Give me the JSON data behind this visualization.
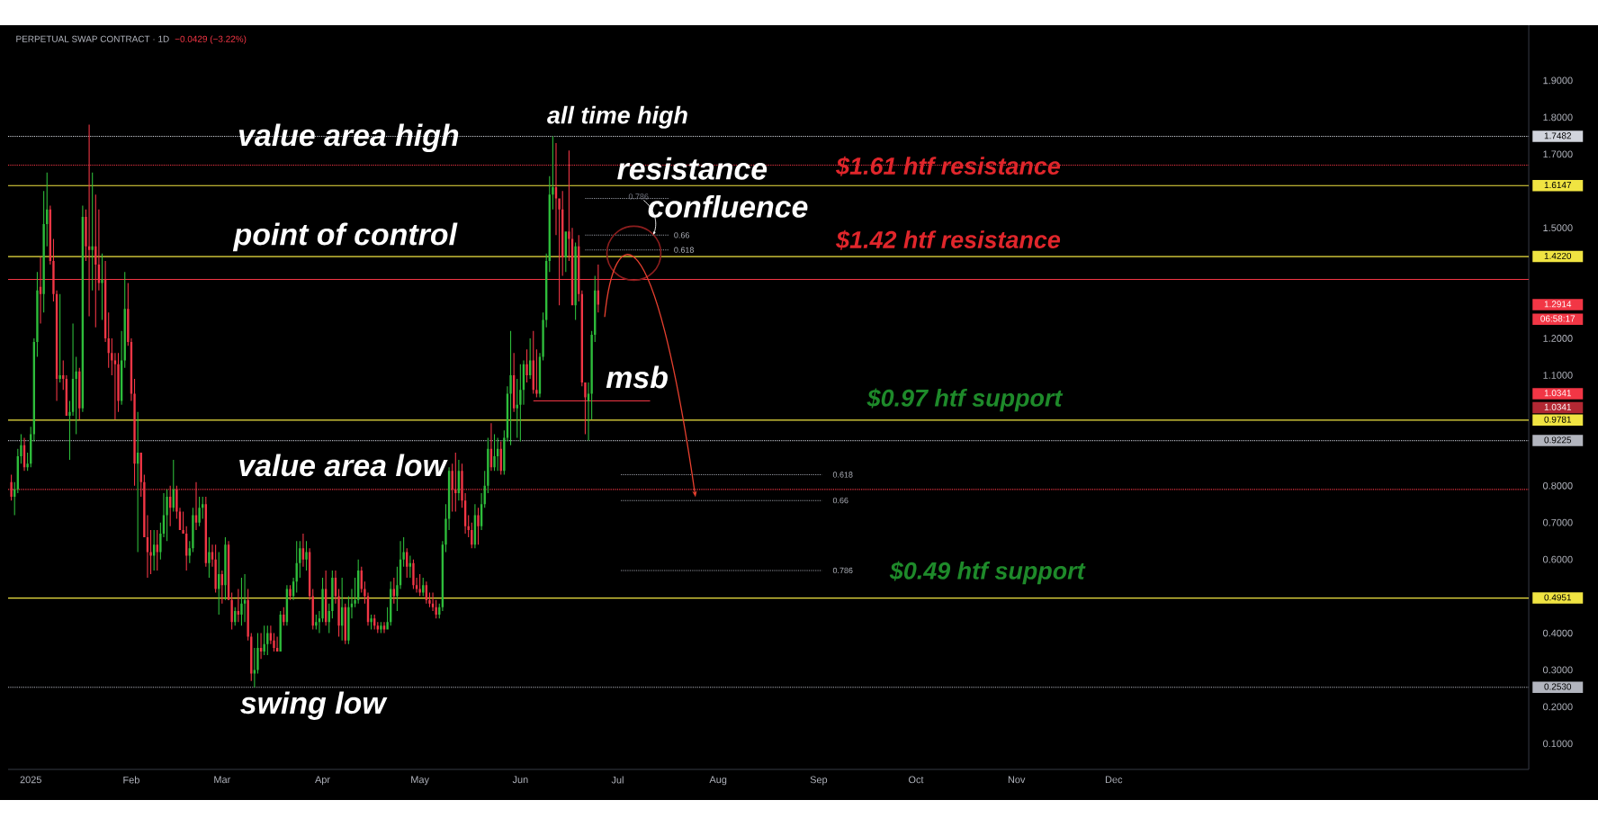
{
  "chart_data": {
    "type": "candlestick",
    "title": "PERPETUAL SWAP CONTRACT · 1D",
    "subtitle": "−0.0429 (−3.22%)",
    "x": [
      "2024-12-26",
      "2024-12-27",
      "2024-12-28",
      "2024-12-29",
      "2024-12-30",
      "2024-12-31",
      "2025-01-01",
      "2025-01-02",
      "2025-01-03",
      "2025-01-04",
      "2025-01-05",
      "2025-01-06",
      "2025-01-07",
      "2025-01-08",
      "2025-01-09",
      "2025-01-10",
      "2025-01-11",
      "2025-01-12",
      "2025-01-13",
      "2025-01-14",
      "2025-01-15",
      "2025-01-16",
      "2025-01-17",
      "2025-01-18",
      "2025-01-19",
      "2025-01-20",
      "2025-01-21",
      "2025-01-22",
      "2025-01-23",
      "2025-01-24",
      "2025-01-25",
      "2025-01-26",
      "2025-01-27",
      "2025-01-28",
      "2025-01-29",
      "2025-01-30",
      "2025-01-31",
      "2025-02-01",
      "2025-02-02",
      "2025-02-03",
      "2025-02-04",
      "2025-02-05",
      "2025-02-06",
      "2025-02-07",
      "2025-02-08",
      "2025-02-09",
      "2025-02-10",
      "2025-02-11",
      "2025-02-12",
      "2025-02-13",
      "2025-02-14",
      "2025-02-15",
      "2025-02-16",
      "2025-02-17",
      "2025-02-18",
      "2025-02-19",
      "2025-02-20",
      "2025-02-21",
      "2025-02-22",
      "2025-02-23",
      "2025-02-24",
      "2025-02-25",
      "2025-02-26",
      "2025-02-27",
      "2025-02-28",
      "2025-03-01",
      "2025-03-02",
      "2025-03-03",
      "2025-03-04",
      "2025-03-05",
      "2025-03-06",
      "2025-03-07",
      "2025-03-08",
      "2025-03-09",
      "2025-03-10",
      "2025-03-11",
      "2025-03-12",
      "2025-03-13",
      "2025-03-14",
      "2025-03-15",
      "2025-03-16",
      "2025-03-17",
      "2025-03-18",
      "2025-03-19",
      "2025-03-20",
      "2025-03-21",
      "2025-03-22",
      "2025-03-23",
      "2025-03-24",
      "2025-03-25",
      "2025-03-26",
      "2025-03-27",
      "2025-03-28",
      "2025-03-29",
      "2025-03-30",
      "2025-03-31",
      "2025-04-01",
      "2025-04-02",
      "2025-04-03",
      "2025-04-04",
      "2025-04-05",
      "2025-04-06",
      "2025-04-07",
      "2025-04-08",
      "2025-04-09",
      "2025-04-10",
      "2025-04-11",
      "2025-04-12",
      "2025-04-13",
      "2025-04-14",
      "2025-04-15",
      "2025-04-16",
      "2025-04-17",
      "2025-04-18",
      "2025-04-19",
      "2025-04-20",
      "2025-04-21",
      "2025-04-22",
      "2025-04-23",
      "2025-04-24",
      "2025-04-25",
      "2025-04-26",
      "2025-04-27",
      "2025-04-28",
      "2025-04-29",
      "2025-04-30",
      "2025-05-01",
      "2025-05-02",
      "2025-05-03",
      "2025-05-04",
      "2025-05-05",
      "2025-05-06",
      "2025-05-07",
      "2025-05-08",
      "2025-05-09",
      "2025-05-10",
      "2025-05-11",
      "2025-05-12",
      "2025-05-13",
      "2025-05-14",
      "2025-05-15",
      "2025-05-16",
      "2025-05-17",
      "2025-05-18",
      "2025-05-19",
      "2025-05-20",
      "2025-05-21",
      "2025-05-22",
      "2025-05-23",
      "2025-05-24",
      "2025-05-25",
      "2025-05-26",
      "2025-05-27",
      "2025-05-28",
      "2025-05-29",
      "2025-05-30",
      "2025-05-31",
      "2025-06-01",
      "2025-06-02",
      "2025-06-03",
      "2025-06-04",
      "2025-06-05",
      "2025-06-06",
      "2025-06-07",
      "2025-06-08",
      "2025-06-09",
      "2025-06-10",
      "2025-06-11",
      "2025-06-12",
      "2025-06-13",
      "2025-06-14",
      "2025-06-15",
      "2025-06-16",
      "2025-06-17",
      "2025-06-18",
      "2025-06-19",
      "2025-06-20",
      "2025-06-21",
      "2025-06-22",
      "2025-06-23",
      "2025-06-24",
      "2025-06-25"
    ],
    "ohlc": [
      [
        0.81,
        0.83,
        0.76,
        0.77
      ],
      [
        0.77,
        0.81,
        0.72,
        0.79
      ],
      [
        0.79,
        0.9,
        0.78,
        0.88
      ],
      [
        0.88,
        0.94,
        0.86,
        0.91
      ],
      [
        0.91,
        0.93,
        0.84,
        0.85
      ],
      [
        0.85,
        0.89,
        0.84,
        0.86
      ],
      [
        0.86,
        0.96,
        0.85,
        0.94
      ],
      [
        0.94,
        1.2,
        0.92,
        1.19
      ],
      [
        1.19,
        1.38,
        1.15,
        1.33
      ],
      [
        1.34,
        1.42,
        1.24,
        1.32
      ],
      [
        1.32,
        1.6,
        1.27,
        1.51
      ],
      [
        1.51,
        1.65,
        1.45,
        1.55
      ],
      [
        1.55,
        1.56,
        1.4,
        1.41
      ],
      [
        1.41,
        1.47,
        1.3,
        1.32
      ],
      [
        1.32,
        1.33,
        1.03,
        1.09
      ],
      [
        1.09,
        1.32,
        1.08,
        1.1
      ],
      [
        1.1,
        1.14,
        1.06,
        1.09
      ],
      [
        1.09,
        1.1,
        0.99,
        0.99
      ],
      [
        0.99,
        1.03,
        0.87,
        1.0
      ],
      [
        1.0,
        1.24,
        0.99,
        1.09
      ],
      [
        1.09,
        1.15,
        0.94,
        1.11
      ],
      [
        1.11,
        1.12,
        0.98,
        1.01
      ],
      [
        1.01,
        1.56,
        1.0,
        1.53
      ],
      [
        1.53,
        1.55,
        1.41,
        1.45
      ],
      [
        1.45,
        1.78,
        1.26,
        1.44
      ],
      [
        1.44,
        1.65,
        1.33,
        1.45
      ],
      [
        1.45,
        1.59,
        1.23,
        1.4
      ],
      [
        1.4,
        1.55,
        1.33,
        1.35
      ],
      [
        1.35,
        1.43,
        1.25,
        1.36
      ],
      [
        1.36,
        1.41,
        1.19,
        1.2
      ],
      [
        1.2,
        1.27,
        1.12,
        1.16
      ],
      [
        1.16,
        1.2,
        1.1,
        1.14
      ],
      [
        1.14,
        1.16,
        0.98,
        1.13
      ],
      [
        1.13,
        1.16,
        1.0,
        1.03
      ],
      [
        1.03,
        1.22,
        1.02,
        1.14
      ],
      [
        1.14,
        1.38,
        1.12,
        1.28
      ],
      [
        1.28,
        1.35,
        1.18,
        1.19
      ],
      [
        1.19,
        1.2,
        1.03,
        1.05
      ],
      [
        1.05,
        1.09,
        0.8,
        0.86
      ],
      [
        0.86,
        1.0,
        0.62,
        0.89
      ],
      [
        0.89,
        0.89,
        0.77,
        0.81
      ],
      [
        0.81,
        0.83,
        0.66,
        0.66
      ],
      [
        0.66,
        0.72,
        0.55,
        0.62
      ],
      [
        0.62,
        0.68,
        0.56,
        0.61
      ],
      [
        0.61,
        0.68,
        0.57,
        0.64
      ],
      [
        0.64,
        0.68,
        0.57,
        0.62
      ],
      [
        0.62,
        0.7,
        0.6,
        0.67
      ],
      [
        0.67,
        0.78,
        0.66,
        0.72
      ],
      [
        0.72,
        0.79,
        0.65,
        0.77
      ],
      [
        0.77,
        0.8,
        0.69,
        0.74
      ],
      [
        0.74,
        0.87,
        0.73,
        0.79
      ],
      [
        0.79,
        0.8,
        0.71,
        0.73
      ],
      [
        0.73,
        0.74,
        0.68,
        0.68
      ],
      [
        0.68,
        0.73,
        0.67,
        0.67
      ],
      [
        0.67,
        0.69,
        0.57,
        0.61
      ],
      [
        0.61,
        0.65,
        0.59,
        0.63
      ],
      [
        0.63,
        0.74,
        0.62,
        0.72
      ],
      [
        0.72,
        0.81,
        0.68,
        0.7
      ],
      [
        0.7,
        0.77,
        0.69,
        0.74
      ],
      [
        0.74,
        0.77,
        0.71,
        0.75
      ],
      [
        0.75,
        0.77,
        0.58,
        0.59
      ],
      [
        0.59,
        0.66,
        0.55,
        0.62
      ],
      [
        0.62,
        0.64,
        0.58,
        0.6
      ],
      [
        0.6,
        0.64,
        0.51,
        0.52
      ],
      [
        0.52,
        0.62,
        0.45,
        0.56
      ],
      [
        0.56,
        0.57,
        0.48,
        0.53
      ],
      [
        0.53,
        0.66,
        0.49,
        0.64
      ],
      [
        0.64,
        0.65,
        0.49,
        0.49
      ],
      [
        0.49,
        0.51,
        0.41,
        0.43
      ],
      [
        0.43,
        0.47,
        0.42,
        0.46
      ],
      [
        0.46,
        0.52,
        0.43,
        0.45
      ],
      [
        0.45,
        0.55,
        0.42,
        0.48
      ],
      [
        0.48,
        0.56,
        0.43,
        0.49
      ],
      [
        0.49,
        0.52,
        0.38,
        0.39
      ],
      [
        0.39,
        0.4,
        0.27,
        0.29
      ],
      [
        0.29,
        0.36,
        0.253,
        0.3
      ],
      [
        0.3,
        0.4,
        0.29,
        0.36
      ],
      [
        0.36,
        0.4,
        0.33,
        0.35
      ],
      [
        0.35,
        0.42,
        0.34,
        0.37
      ],
      [
        0.37,
        0.42,
        0.34,
        0.4
      ],
      [
        0.4,
        0.42,
        0.37,
        0.38
      ],
      [
        0.38,
        0.4,
        0.35,
        0.36
      ],
      [
        0.36,
        0.39,
        0.35,
        0.35
      ],
      [
        0.35,
        0.46,
        0.35,
        0.45
      ],
      [
        0.45,
        0.47,
        0.42,
        0.43
      ],
      [
        0.43,
        0.53,
        0.42,
        0.52
      ],
      [
        0.52,
        0.53,
        0.49,
        0.5
      ],
      [
        0.5,
        0.55,
        0.49,
        0.54
      ],
      [
        0.54,
        0.65,
        0.51,
        0.59
      ],
      [
        0.59,
        0.65,
        0.55,
        0.63
      ],
      [
        0.63,
        0.67,
        0.58,
        0.6
      ],
      [
        0.6,
        0.65,
        0.57,
        0.62
      ],
      [
        0.62,
        0.63,
        0.49,
        0.5
      ],
      [
        0.5,
        0.52,
        0.41,
        0.42
      ],
      [
        0.42,
        0.45,
        0.41,
        0.43
      ],
      [
        0.43,
        0.46,
        0.4,
        0.44
      ],
      [
        0.44,
        0.55,
        0.43,
        0.52
      ],
      [
        0.52,
        0.57,
        0.42,
        0.43
      ],
      [
        0.43,
        0.48,
        0.4,
        0.46
      ],
      [
        0.46,
        0.57,
        0.44,
        0.55
      ],
      [
        0.55,
        0.57,
        0.48,
        0.5
      ],
      [
        0.5,
        0.52,
        0.39,
        0.42
      ],
      [
        0.42,
        0.55,
        0.38,
        0.47
      ],
      [
        0.47,
        0.48,
        0.37,
        0.38
      ],
      [
        0.38,
        0.5,
        0.37,
        0.47
      ],
      [
        0.47,
        0.52,
        0.44,
        0.48
      ],
      [
        0.48,
        0.55,
        0.47,
        0.49
      ],
      [
        0.49,
        0.6,
        0.48,
        0.57
      ],
      [
        0.57,
        0.58,
        0.51,
        0.52
      ],
      [
        0.52,
        0.54,
        0.48,
        0.5
      ],
      [
        0.5,
        0.51,
        0.42,
        0.43
      ],
      [
        0.43,
        0.45,
        0.41,
        0.44
      ],
      [
        0.44,
        0.45,
        0.41,
        0.42
      ],
      [
        0.42,
        0.43,
        0.4,
        0.41
      ],
      [
        0.41,
        0.43,
        0.4,
        0.42
      ],
      [
        0.42,
        0.43,
        0.4,
        0.41
      ],
      [
        0.41,
        0.47,
        0.41,
        0.43
      ],
      [
        0.43,
        0.54,
        0.42,
        0.52
      ],
      [
        0.52,
        0.55,
        0.48,
        0.5
      ],
      [
        0.5,
        0.58,
        0.46,
        0.53
      ],
      [
        0.53,
        0.65,
        0.52,
        0.6
      ],
      [
        0.6,
        0.66,
        0.58,
        0.62
      ],
      [
        0.62,
        0.63,
        0.55,
        0.58
      ],
      [
        0.58,
        0.61,
        0.55,
        0.59
      ],
      [
        0.59,
        0.6,
        0.52,
        0.53
      ],
      [
        0.53,
        0.55,
        0.51,
        0.52
      ],
      [
        0.52,
        0.56,
        0.5,
        0.51
      ],
      [
        0.51,
        0.55,
        0.5,
        0.53
      ],
      [
        0.53,
        0.54,
        0.48,
        0.49
      ],
      [
        0.49,
        0.51,
        0.47,
        0.48
      ],
      [
        0.48,
        0.51,
        0.46,
        0.47
      ],
      [
        0.47,
        0.49,
        0.44,
        0.45
      ],
      [
        0.45,
        0.48,
        0.44,
        0.47
      ],
      [
        0.47,
        0.65,
        0.46,
        0.64
      ],
      [
        0.64,
        0.75,
        0.62,
        0.71
      ],
      [
        0.71,
        0.85,
        0.68,
        0.84
      ],
      [
        0.84,
        0.86,
        0.73,
        0.79
      ],
      [
        0.79,
        0.89,
        0.73,
        0.78
      ],
      [
        0.78,
        0.87,
        0.76,
        0.84
      ],
      [
        0.84,
        0.86,
        0.74,
        0.76
      ],
      [
        0.76,
        0.78,
        0.67,
        0.69
      ],
      [
        0.69,
        0.72,
        0.66,
        0.68
      ],
      [
        0.68,
        0.7,
        0.63,
        0.64
      ],
      [
        0.64,
        0.75,
        0.63,
        0.72
      ],
      [
        0.72,
        0.74,
        0.64,
        0.69
      ],
      [
        0.69,
        0.78,
        0.68,
        0.75
      ],
      [
        0.75,
        0.84,
        0.74,
        0.8
      ],
      [
        0.8,
        0.93,
        0.78,
        0.9
      ],
      [
        0.9,
        0.97,
        0.84,
        0.85
      ],
      [
        0.85,
        0.94,
        0.84,
        0.88
      ],
      [
        0.88,
        0.93,
        0.84,
        0.9
      ],
      [
        0.9,
        0.92,
        0.83,
        0.84
      ],
      [
        0.84,
        0.95,
        0.83,
        0.93
      ],
      [
        0.93,
        1.07,
        0.92,
        1.05
      ],
      [
        1.05,
        1.22,
        0.91,
        1.1
      ],
      [
        1.1,
        1.16,
        1.0,
        1.01
      ],
      [
        1.01,
        1.09,
        0.93,
        1.02
      ],
      [
        1.02,
        1.13,
        0.92,
        1.06
      ],
      [
        1.06,
        1.14,
        1.02,
        1.13
      ],
      [
        1.13,
        1.17,
        1.08,
        1.1
      ],
      [
        1.1,
        1.2,
        1.09,
        1.14
      ],
      [
        1.14,
        1.22,
        1.05,
        1.06
      ],
      [
        1.06,
        1.17,
        1.04,
        1.05
      ],
      [
        1.05,
        1.16,
        1.04,
        1.15
      ],
      [
        1.15,
        1.27,
        1.14,
        1.25
      ],
      [
        1.25,
        1.43,
        1.23,
        1.41
      ],
      [
        1.41,
        1.64,
        1.38,
        1.59
      ],
      [
        1.59,
        1.7482,
        1.55,
        1.61
      ],
      [
        1.61,
        1.73,
        1.48,
        1.58
      ],
      [
        1.58,
        1.58,
        1.29,
        1.55
      ],
      [
        1.55,
        1.6,
        1.37,
        1.42
      ],
      [
        1.42,
        1.49,
        1.38,
        1.49
      ],
      [
        1.49,
        1.71,
        1.41,
        1.47
      ],
      [
        1.47,
        1.5,
        1.29,
        1.29
      ],
      [
        1.29,
        1.46,
        1.25,
        1.45
      ],
      [
        1.45,
        1.48,
        1.3,
        1.32
      ],
      [
        1.32,
        1.33,
        1.07,
        1.08
      ],
      [
        1.08,
        1.08,
        0.94,
        1.04
      ],
      [
        1.03,
        1.08,
        0.9225,
        1.05
      ],
      [
        1.05,
        1.22,
        0.98,
        1.21
      ],
      [
        1.21,
        1.37,
        1.19,
        1.33
      ],
      [
        1.33,
        1.4,
        1.27,
        1.2914
      ]
    ],
    "xlim": [
      "2024-12-25",
      "2026-04-08"
    ],
    "xticks": [
      {
        "value": "2025-01-01",
        "label": "2025"
      },
      {
        "value": "2025-02-01",
        "label": "Feb"
      },
      {
        "value": "2025-03-01",
        "label": "Mar"
      },
      {
        "value": "2025-04-01",
        "label": "Apr"
      },
      {
        "value": "2025-05-01",
        "label": "May"
      },
      {
        "value": "2025-06-01",
        "label": "Jun"
      },
      {
        "value": "2025-07-01",
        "label": "Jul"
      },
      {
        "value": "2025-08-01",
        "label": "Aug"
      },
      {
        "value": "2025-09-01",
        "label": "Sep"
      },
      {
        "value": "2025-10-01",
        "label": "Oct"
      },
      {
        "value": "2025-11-01",
        "label": "Nov"
      },
      {
        "value": "2025-12-01",
        "label": "Dec"
      }
    ],
    "ylim": [
      0.03,
      2.05
    ],
    "yticks": [
      {
        "value": 0.1,
        "label": "0.1000"
      },
      {
        "value": 0.2,
        "label": "0.2000"
      },
      {
        "value": 0.3,
        "label": "0.3000"
      },
      {
        "value": 0.4,
        "label": "0.4000"
      },
      {
        "value": 0.6,
        "label": "0.6000"
      },
      {
        "value": 0.7,
        "label": "0.7000"
      },
      {
        "value": 0.8,
        "label": "0.8000"
      },
      {
        "value": 1.1,
        "label": "1.1000"
      },
      {
        "value": 1.2,
        "label": "1.2000"
      },
      {
        "value": 1.5,
        "label": "1.5000"
      },
      {
        "value": 1.7,
        "label": "1.7000"
      },
      {
        "value": 1.8,
        "label": "1.8000"
      },
      {
        "value": 1.9,
        "label": "1.9000"
      }
    ],
    "grid": false,
    "series": [
      {
        "type": "line",
        "color": "#f23645",
        "line_style": "solid",
        "x": [
          "2025-06-05",
          "2025-07-11"
        ],
        "values": [
          1.03,
          1.03
        ]
      },
      {
        "type": "line",
        "color": "#9598a1",
        "line_style": "dotted",
        "x": [
          "2025-06-21",
          "2025-07-17"
        ],
        "values": [
          1.58,
          1.58
        ]
      },
      {
        "type": "line",
        "color": "#9598a1",
        "line_style": "dotted",
        "x": [
          "2025-06-21",
          "2025-07-17"
        ],
        "values": [
          1.48,
          1.48
        ]
      },
      {
        "type": "line",
        "color": "#9598a1",
        "line_style": "dotted",
        "x": [
          "2025-06-21",
          "2025-07-17"
        ],
        "values": [
          1.44,
          1.44
        ]
      },
      {
        "type": "line",
        "color": "#9598a1",
        "line_style": "dotted",
        "x": [
          "2025-07-02",
          "2025-09-02"
        ],
        "values": [
          0.83,
          0.83
        ]
      },
      {
        "type": "line",
        "color": "#9598a1",
        "line_style": "dotted",
        "x": [
          "2025-07-02",
          "2025-09-02"
        ],
        "values": [
          0.76,
          0.76
        ]
      },
      {
        "type": "line",
        "color": "#9598a1",
        "line_style": "dotted",
        "x": [
          "2025-07-02",
          "2025-09-02"
        ],
        "values": [
          0.57,
          0.57
        ]
      }
    ],
    "ref_lines": [
      {
        "axis": "y",
        "value": 1.67,
        "color": "#f23645",
        "line_style": "dotted"
      },
      {
        "axis": "y",
        "value": 1.36,
        "color": "#f23645",
        "line_style": "solid"
      },
      {
        "axis": "y",
        "value": 0.79,
        "color": "#f23645",
        "line_style": "dotted"
      },
      {
        "axis": "y",
        "value": 1.7482,
        "label": "1.7482",
        "color": "#d1d4dc",
        "line_style": "dotted"
      },
      {
        "axis": "y",
        "value": 1.6147,
        "label": "1.6147",
        "color": "#f0e442",
        "line_style": "solid"
      },
      {
        "axis": "y",
        "value": 1.422,
        "label": "1.4220",
        "color": "#f0e442",
        "line_style": "solid"
      },
      {
        "axis": "y",
        "value": 0.9781,
        "label": "0.9781",
        "color": "#f0e442",
        "line_style": "solid"
      },
      {
        "axis": "y",
        "value": 0.9225,
        "label": "0.9225",
        "color": "#b2b5be",
        "line_style": "dotted"
      },
      {
        "axis": "y",
        "value": 0.4951,
        "label": "0.4951",
        "color": "#f0e442",
        "line_style": "solid"
      },
      {
        "axis": "y",
        "value": 0.253,
        "label": "0.2530",
        "color": "#b2b5be",
        "line_style": "dotted"
      }
    ],
    "annotations": [
      "value area high",
      "point of control",
      "value area low",
      "swing low",
      "all time high",
      {
        "text": "resistance",
        "x": "2025-07-12",
        "y": 1.48
      },
      "confluence",
      "msb",
      "$1.61 htf resistance",
      "$1.42 htf resistance",
      "$0.97 htf support",
      "$0.49 htf support",
      "0.786",
      "0.66",
      "0.618",
      "0.618",
      "0.66",
      "0.786",
      "1.2914",
      "06:58:17",
      "1.0341",
      "1.0341"
    ]
  }
}
